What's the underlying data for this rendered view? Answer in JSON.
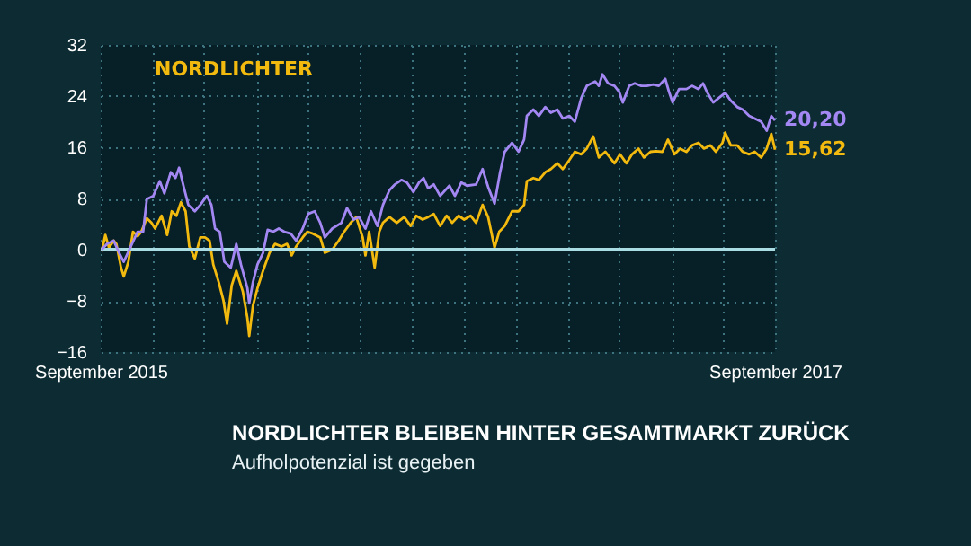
{
  "chart_data": {
    "type": "line",
    "title": "NORDLICHTER BLEIBEN HINTER GESAMTMARKT ZURÜCK",
    "subtitle": "Aufholpotenzial ist gegeben",
    "series": [
      {
        "name": "NORDLICHTER",
        "color": "#f2b90f",
        "x": [
          "2015-09-02",
          "2015-09-06",
          "2015-09-10",
          "2015-09-15",
          "2015-09-18",
          "2015-09-23",
          "2015-09-26",
          "2015-10-01",
          "2015-10-06",
          "2015-10-11",
          "2015-10-15",
          "2015-10-21",
          "2015-10-26",
          "2015-10-30",
          "2015-11-06",
          "2015-11-12",
          "2015-11-17",
          "2015-11-22",
          "2015-11-27",
          "2015-12-02",
          "2015-12-06",
          "2015-12-12",
          "2015-12-18",
          "2015-12-23",
          "2015-12-28",
          "2016-01-01",
          "2016-01-07",
          "2016-01-12",
          "2016-01-16",
          "2016-01-21",
          "2016-01-26",
          "2016-02-02",
          "2016-02-07",
          "2016-02-09",
          "2016-02-13",
          "2016-02-18",
          "2016-02-24",
          "2016-03-02",
          "2016-03-08",
          "2016-03-15",
          "2016-03-21",
          "2016-03-26",
          "2016-03-31",
          "2016-04-07",
          "2016-04-12",
          "2016-04-18",
          "2016-04-26",
          "2016-05-01",
          "2016-05-09",
          "2016-05-16",
          "2016-05-22",
          "2016-05-29",
          "2016-06-04",
          "2016-06-11",
          "2016-06-14",
          "2016-06-18",
          "2016-06-24",
          "2016-06-29",
          "2016-07-03",
          "2016-07-10",
          "2016-07-18",
          "2016-07-26",
          "2016-08-02",
          "2016-08-08",
          "2016-08-15",
          "2016-08-21",
          "2016-08-27",
          "2016-09-03",
          "2016-09-10",
          "2016-09-16",
          "2016-09-23",
          "2016-09-29",
          "2016-10-06",
          "2016-10-12",
          "2016-10-19",
          "2016-10-25",
          "2016-11-01",
          "2016-11-06",
          "2016-11-12",
          "2016-11-20",
          "2016-11-27",
          "2016-12-03",
          "2016-12-06",
          "2016-12-13",
          "2016-12-19",
          "2016-12-26",
          "2017-01-01",
          "2017-01-08",
          "2017-01-14",
          "2017-01-21",
          "2017-01-27",
          "2017-02-03",
          "2017-02-09",
          "2017-02-16",
          "2017-02-22",
          "2017-03-01",
          "2017-03-11",
          "2017-03-17",
          "2017-03-24",
          "2017-03-30",
          "2017-04-06",
          "2017-04-12",
          "2017-04-19",
          "2017-04-25",
          "2017-05-02",
          "2017-05-08",
          "2017-05-15",
          "2017-05-21",
          "2017-05-28",
          "2017-06-03",
          "2017-06-10",
          "2017-06-16",
          "2017-06-23",
          "2017-06-29",
          "2017-07-06",
          "2017-07-09",
          "2017-07-15",
          "2017-07-22",
          "2017-07-28",
          "2017-08-04",
          "2017-08-10",
          "2017-08-17",
          "2017-08-23",
          "2017-08-28",
          "2017-09-01"
        ],
        "values": [
          -0.3,
          2.3,
          0.3,
          1.4,
          0.9,
          -2.8,
          -4.2,
          -1.9,
          2.8,
          2.1,
          2.8,
          4.9,
          4.2,
          3.3,
          5.3,
          2.3,
          6.0,
          5.3,
          7.4,
          6.0,
          0.5,
          -1.4,
          1.9,
          1.9,
          1.4,
          -2.3,
          -5.1,
          -7.9,
          -11.6,
          -5.6,
          -3.3,
          -6.5,
          -10.7,
          -13.5,
          -8.8,
          -6.0,
          -3.3,
          -0.5,
          0.9,
          0.5,
          0.9,
          -0.9,
          0.5,
          1.9,
          2.8,
          2.5,
          1.9,
          -0.5,
          0.0,
          1.4,
          2.8,
          4.2,
          5.1,
          1.9,
          -0.9,
          2.8,
          -2.8,
          2.8,
          4.2,
          5.1,
          4.2,
          5.1,
          3.7,
          5.3,
          4.7,
          5.1,
          5.6,
          3.7,
          5.3,
          4.2,
          5.3,
          4.7,
          5.3,
          4.2,
          7.0,
          5.1,
          0.3,
          2.8,
          3.7,
          6.0,
          6.0,
          7.0,
          10.7,
          11.2,
          10.9,
          12.1,
          12.6,
          13.5,
          12.6,
          14.0,
          15.3,
          14.9,
          15.8,
          17.7,
          14.4,
          15.3,
          13.5,
          14.9,
          13.5,
          14.9,
          15.8,
          14.4,
          15.3,
          15.4,
          15.3,
          17.2,
          14.9,
          15.8,
          15.3,
          16.3,
          16.7,
          15.8,
          16.3,
          15.3,
          16.7,
          18.3,
          16.3,
          16.3,
          15.3,
          14.9,
          15.3,
          14.4,
          15.8,
          18.1,
          15.62
        ]
      },
      {
        "color": "#a387f2",
        "x": [
          "2015-09-02",
          "2015-09-08",
          "2015-09-15",
          "2015-09-21",
          "2015-09-26",
          "2015-10-02",
          "2015-10-11",
          "2015-10-17",
          "2015-10-21",
          "2015-10-28",
          "2015-11-04",
          "2015-11-09",
          "2015-11-16",
          "2015-11-21",
          "2015-11-25",
          "2015-11-30",
          "2015-12-05",
          "2015-12-12",
          "2015-12-18",
          "2015-12-25",
          "2015-12-30",
          "2016-01-03",
          "2016-01-08",
          "2016-01-13",
          "2016-01-20",
          "2016-01-26",
          "2016-01-31",
          "2016-02-07",
          "2016-02-09",
          "2016-02-13",
          "2016-02-18",
          "2016-02-24",
          "2016-02-29",
          "2016-03-06",
          "2016-03-12",
          "2016-03-18",
          "2016-03-25",
          "2016-03-31",
          "2016-04-07",
          "2016-04-13",
          "2016-04-20",
          "2016-04-26",
          "2016-05-01",
          "2016-05-09",
          "2016-05-19",
          "2016-05-25",
          "2016-06-01",
          "2016-06-07",
          "2016-06-14",
          "2016-06-20",
          "2016-06-27",
          "2016-07-03",
          "2016-07-10",
          "2016-07-16",
          "2016-07-23",
          "2016-07-29",
          "2016-08-05",
          "2016-08-11",
          "2016-08-16",
          "2016-08-21",
          "2016-08-27",
          "2016-09-03",
          "2016-09-13",
          "2016-09-19",
          "2016-09-26",
          "2016-10-02",
          "2016-10-12",
          "2016-10-19",
          "2016-10-25",
          "2016-11-01",
          "2016-11-07",
          "2016-11-12",
          "2016-11-20",
          "2016-11-27",
          "2016-12-03",
          "2016-12-06",
          "2016-12-13",
          "2016-12-19",
          "2016-12-26",
          "2017-01-01",
          "2017-01-08",
          "2017-01-14",
          "2017-01-21",
          "2017-01-27",
          "2017-02-03",
          "2017-02-09",
          "2017-02-18",
          "2017-02-22",
          "2017-02-26",
          "2017-03-04",
          "2017-03-11",
          "2017-03-16",
          "2017-03-20",
          "2017-03-27",
          "2017-04-02",
          "2017-04-09",
          "2017-04-15",
          "2017-04-22",
          "2017-04-28",
          "2017-05-05",
          "2017-05-09",
          "2017-05-13",
          "2017-05-20",
          "2017-05-28",
          "2017-06-03",
          "2017-06-10",
          "2017-06-15",
          "2017-06-19",
          "2017-06-26",
          "2017-07-02",
          "2017-07-09",
          "2017-07-15",
          "2017-07-22",
          "2017-07-28",
          "2017-08-04",
          "2017-08-10",
          "2017-08-17",
          "2017-08-23",
          "2017-08-28",
          "2017-09-01"
        ],
        "values": [
          0.0,
          0.9,
          1.4,
          -0.5,
          -1.9,
          0.0,
          2.8,
          2.8,
          7.9,
          8.4,
          10.7,
          8.8,
          12.1,
          11.2,
          12.8,
          9.8,
          7.0,
          6.0,
          7.0,
          8.4,
          7.0,
          3.3,
          2.8,
          -1.9,
          -2.8,
          0.9,
          -2.3,
          -6.0,
          -8.4,
          -5.1,
          -2.3,
          -0.5,
          3.1,
          2.8,
          3.3,
          2.8,
          2.5,
          1.4,
          3.3,
          5.6,
          6.0,
          4.2,
          1.9,
          3.3,
          4.2,
          6.5,
          4.7,
          5.1,
          3.3,
          6.0,
          3.7,
          7.0,
          9.3,
          10.2,
          10.9,
          10.5,
          9.0,
          10.5,
          11.2,
          9.6,
          10.2,
          8.4,
          10.0,
          8.4,
          10.5,
          10.0,
          10.2,
          12.6,
          9.8,
          7.2,
          12.1,
          15.3,
          16.7,
          15.3,
          17.2,
          20.9,
          21.9,
          20.9,
          22.3,
          21.4,
          21.9,
          20.5,
          20.9,
          20.0,
          23.7,
          25.6,
          26.3,
          25.6,
          27.4,
          26.0,
          25.6,
          24.7,
          23.0,
          25.6,
          26.0,
          25.6,
          25.6,
          25.8,
          25.6,
          26.7,
          24.7,
          23.0,
          25.1,
          25.1,
          25.6,
          25.1,
          26.0,
          24.7,
          23.0,
          23.7,
          24.5,
          23.3,
          22.3,
          21.9,
          20.9,
          20.5,
          20.0,
          18.6,
          20.9,
          20.2
        ]
      }
    ],
    "xlim": [
      "2015-09-01",
      "2017-09-01"
    ],
    "xticks": [
      {
        "value": "2015-09-01",
        "label": "September 2015"
      },
      {
        "value": "2015-10-27",
        "label": null
      },
      {
        "value": "2015-12-22",
        "label": null
      },
      {
        "value": "2016-02-17",
        "label": null
      },
      {
        "value": "2016-04-13",
        "label": null
      },
      {
        "value": "2016-06-08",
        "label": null
      },
      {
        "value": "2016-08-03",
        "label": null
      },
      {
        "value": "2016-09-29",
        "label": null
      },
      {
        "value": "2016-11-24",
        "label": null
      },
      {
        "value": "2017-01-19",
        "label": null
      },
      {
        "value": "2017-03-16",
        "label": null
      },
      {
        "value": "2017-05-12",
        "label": null
      },
      {
        "value": "2017-07-07",
        "label": null
      },
      {
        "value": "2017-09-01",
        "label": "September 2017"
      }
    ],
    "ylim": [
      -16,
      32
    ],
    "yticks": [
      -16,
      -8,
      0,
      8,
      16,
      24,
      32
    ],
    "grid": true,
    "legend": "top left",
    "line_style": "solid",
    "marker": "none",
    "ref_lines": [
      {
        "axis": "y",
        "value": 0,
        "color": "#a9dde3"
      }
    ],
    "annotations": [
      {
        "text": "20,20",
        "x": "2017-09-01",
        "y": 20.2
      },
      {
        "text": "15,62",
        "x": "2017-09-01",
        "y": 15.62
      }
    ]
  }
}
